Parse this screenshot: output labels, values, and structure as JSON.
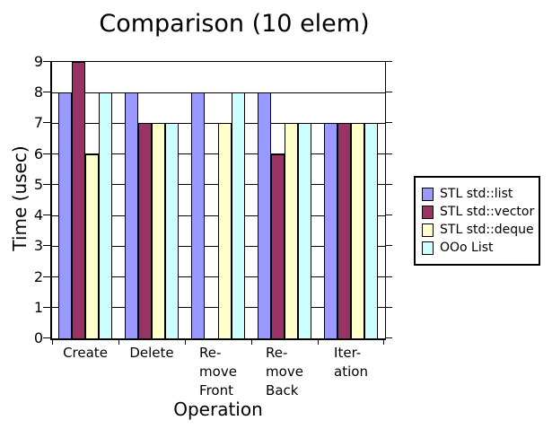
{
  "chart_data": {
    "type": "bar",
    "title": "Comparison (10 elem)",
    "xlabel": "Operation",
    "ylabel": "Time (usec)",
    "ylim": [
      0,
      9
    ],
    "yticks": [
      0,
      1,
      2,
      3,
      4,
      5,
      6,
      7,
      8,
      9
    ],
    "grid": "horizontal",
    "legend_position": "right",
    "background": "#FFFFFF",
    "bar_outline": "#000000",
    "categories": [
      "Create",
      "Delete",
      "Remove Front",
      "Remove Back",
      "Iteration"
    ],
    "category_display_lines": [
      [
        "Create"
      ],
      [
        "Delete"
      ],
      [
        "Re-",
        "move",
        "Front"
      ],
      [
        "Re-",
        "move",
        "Back"
      ],
      [
        "Iter-",
        "ation"
      ]
    ],
    "series": [
      {
        "name": "STL std::list",
        "color": "#9999FF",
        "values": [
          8,
          8,
          8,
          8,
          7
        ]
      },
      {
        "name": "STL std::vector",
        "color": "#993366",
        "values": [
          9,
          7,
          0,
          6,
          7
        ]
      },
      {
        "name": "STL std::deque",
        "color": "#FFFFCC",
        "values": [
          6,
          7,
          7,
          7,
          7
        ]
      },
      {
        "name": "OOo List",
        "color": "#CCFFFF",
        "values": [
          8,
          7,
          8,
          7,
          7
        ]
      }
    ]
  }
}
